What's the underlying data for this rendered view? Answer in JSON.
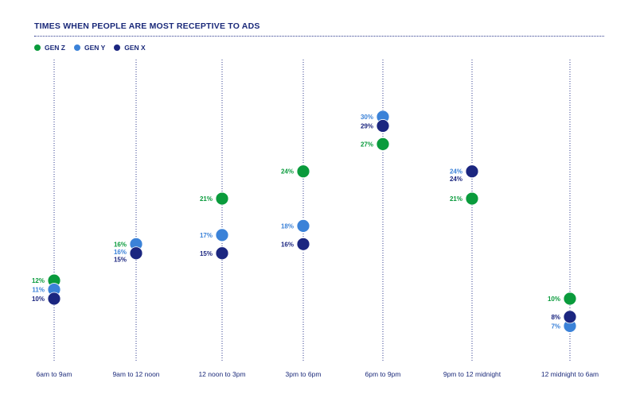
{
  "chart_data": {
    "type": "scatter",
    "title": "TIMES WHEN PEOPLE ARE MOST RECEPTIVE TO ADS",
    "categories": [
      "6am to 9am",
      "9am to 12 noon",
      "12 noon to 3pm",
      "3pm to 6pm",
      "6pm to 9pm",
      "9pm to 12 midnight",
      "12 midnight to 6am"
    ],
    "series": [
      {
        "name": "GEN Z",
        "color": "#0a9b3c",
        "values": [
          12,
          16,
          21,
          24,
          27,
          21,
          10
        ],
        "labels": [
          "12%",
          "16%",
          "21%",
          "24%",
          "27%",
          "21%",
          "10%"
        ]
      },
      {
        "name": "GEN Y",
        "color": "#3b82d8",
        "values": [
          11,
          16,
          17,
          18,
          30,
          24,
          7
        ],
        "labels": [
          "11%",
          "16%",
          "17%",
          "18%",
          "30%",
          "24%",
          "7%"
        ]
      },
      {
        "name": "GEN X",
        "color": "#1b2680",
        "values": [
          10,
          15,
          15,
          16,
          29,
          24,
          8
        ],
        "labels": [
          "10%",
          "15%",
          "15%",
          "16%",
          "29%",
          "24%",
          "8%"
        ]
      }
    ],
    "ylim": [
      0,
      35
    ],
    "grid": false,
    "legend": "top-left"
  }
}
